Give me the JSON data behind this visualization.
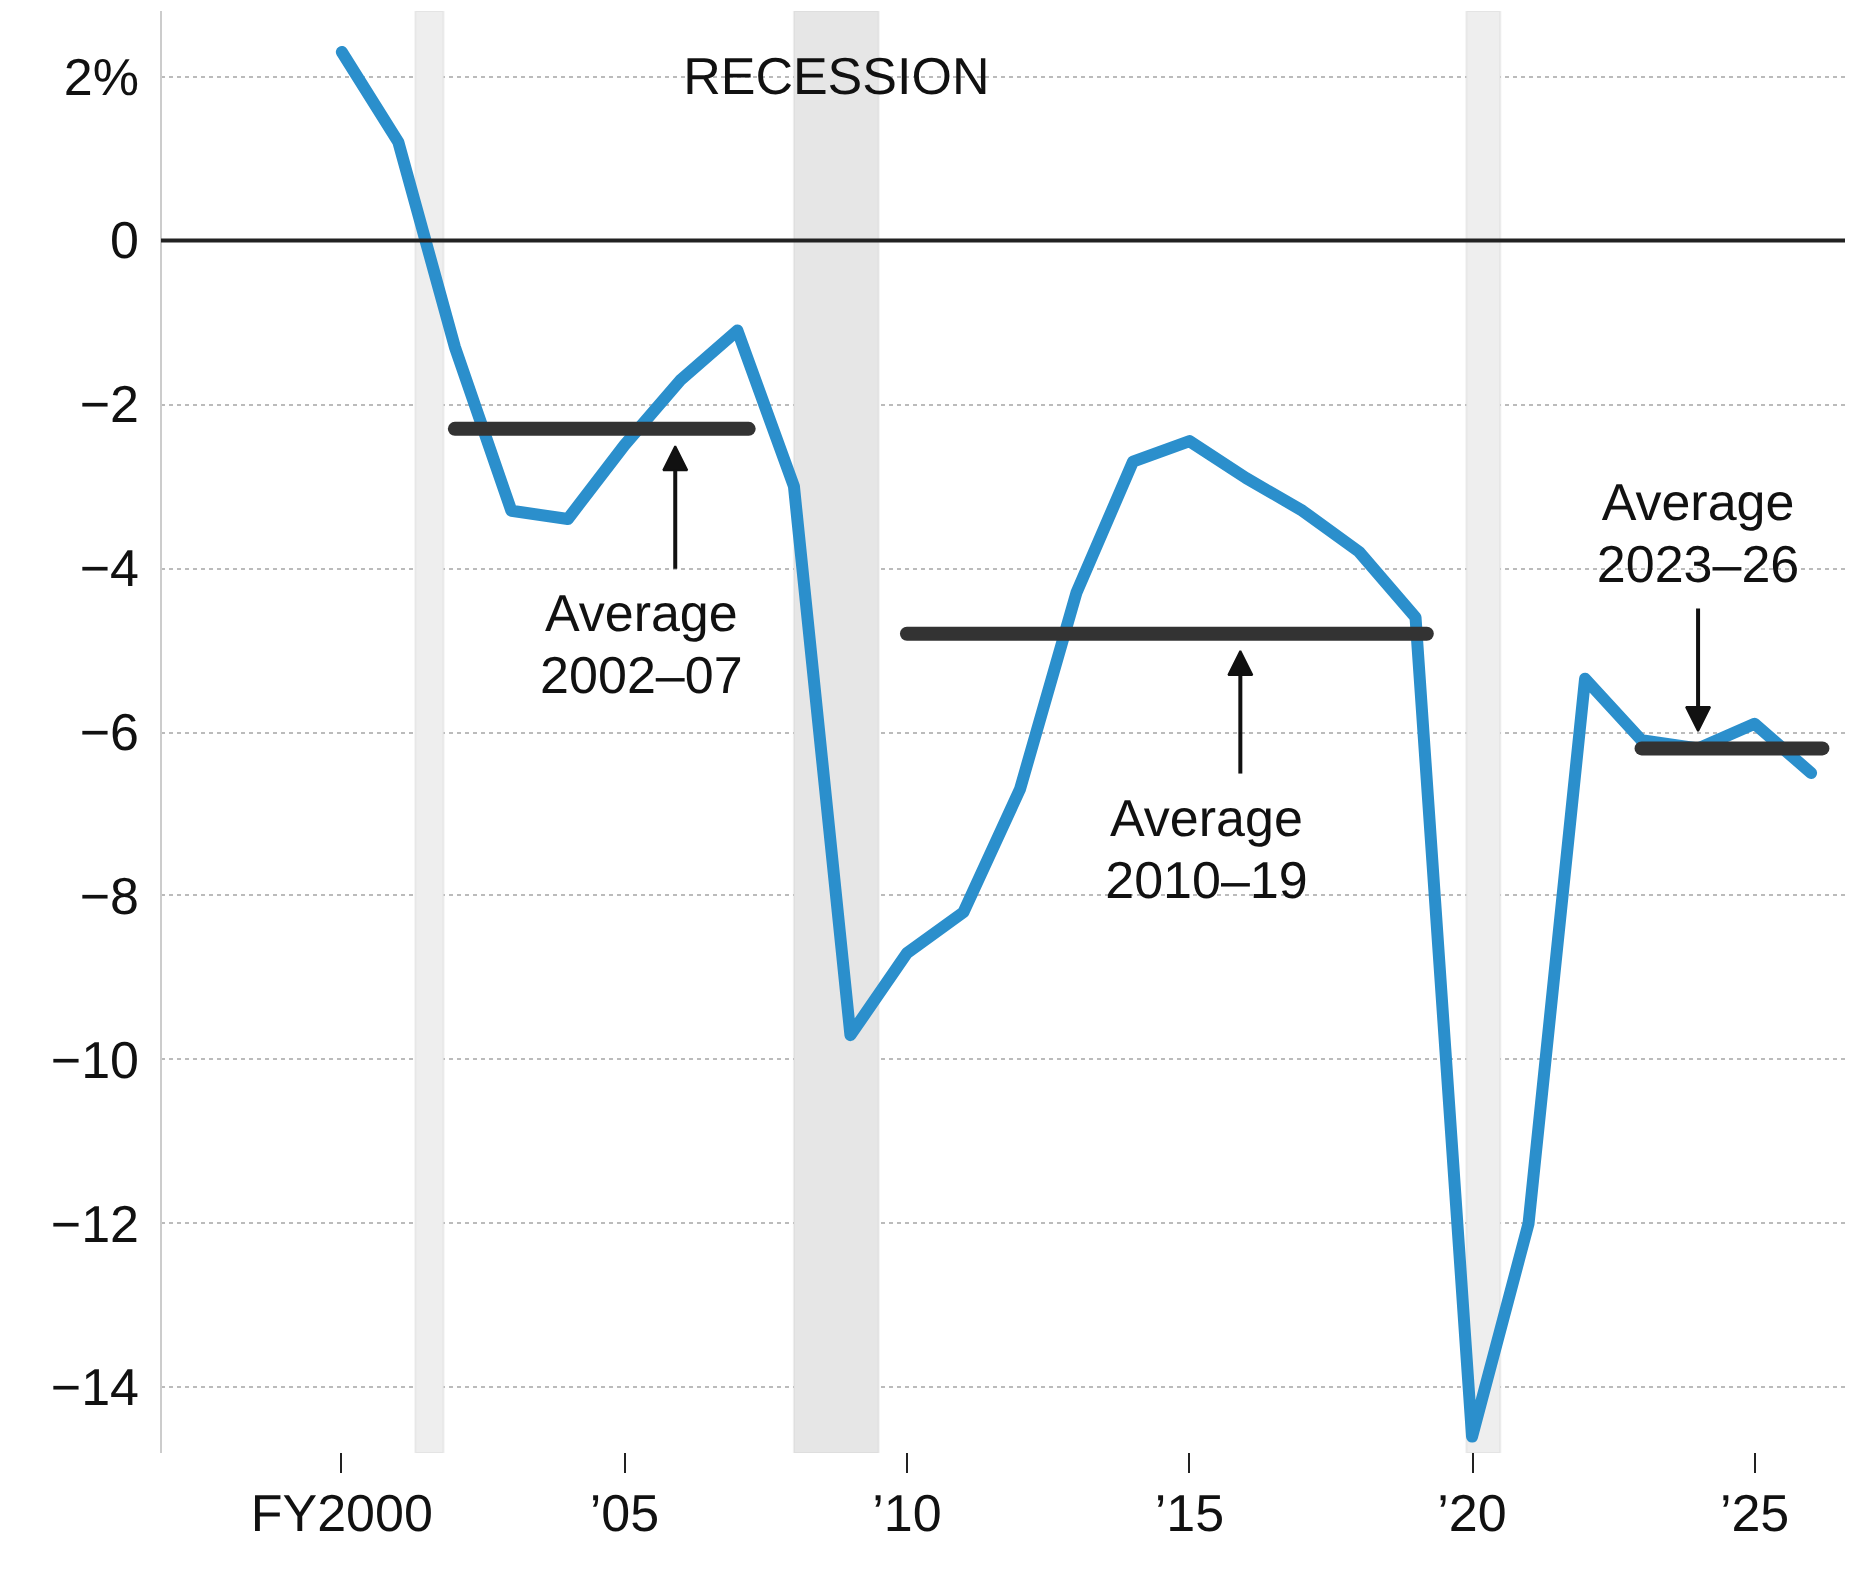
{
  "chart_data": {
    "type": "line",
    "x": [
      2000,
      2001,
      2002,
      2003,
      2004,
      2005,
      2006,
      2007,
      2008,
      2009,
      2010,
      2011,
      2012,
      2013,
      2014,
      2015,
      2016,
      2017,
      2018,
      2019,
      2020,
      2021,
      2022,
      2023,
      2024,
      2025,
      2026
    ],
    "series": [
      {
        "color": "#2b8fcc",
        "values": [
          2.3,
          1.2,
          -1.3,
          -3.3,
          -3.4,
          -2.5,
          -1.7,
          -1.1,
          -3.0,
          -9.7,
          -8.7,
          -8.2,
          -6.7,
          -4.3,
          -2.7,
          -2.45,
          -2.9,
          -3.3,
          -3.8,
          -4.6,
          -14.6,
          -12.0,
          -5.35,
          -6.1,
          -6.2,
          -5.9,
          -6.5
        ]
      },
      {
        "type": "line",
        "color": "#333333",
        "x": [
          2002,
          2007.2
        ],
        "values": [
          -2.3,
          -2.3
        ]
      },
      {
        "type": "line",
        "color": "#333333",
        "x": [
          2010,
          2019.2
        ],
        "values": [
          -4.8,
          -4.8
        ]
      },
      {
        "type": "line",
        "color": "#333333",
        "x": [
          2023,
          2026.2
        ],
        "values": [
          -6.2,
          -6.2
        ]
      }
    ],
    "xlim": [
      1996.8,
      2026.6
    ],
    "ylim": [
      -14.8,
      2.8
    ],
    "xticks": [
      {
        "value": 2000,
        "label": "FY2000"
      },
      {
        "value": 2005,
        "label": "’05"
      },
      {
        "value": 2010,
        "label": "’10"
      },
      {
        "value": 2015,
        "label": "’15"
      },
      {
        "value": 2020,
        "label": "’20"
      },
      {
        "value": 2025,
        "label": "’25"
      }
    ],
    "yticks": [
      {
        "value": 2,
        "label": "2%"
      },
      {
        "value": 0,
        "label": "0"
      },
      {
        "value": -2,
        "label": "−2"
      },
      {
        "value": -4,
        "label": "−4"
      },
      {
        "value": -6,
        "label": "−6"
      },
      {
        "value": -8,
        "label": "−8"
      },
      {
        "value": -10,
        "label": "−10"
      },
      {
        "value": -12,
        "label": "−12"
      },
      {
        "value": -14,
        "label": "−14"
      }
    ],
    "grid": "y",
    "ref_lines": [
      {
        "axis": "y",
        "value": 0,
        "color": "#222222"
      }
    ],
    "bands": [
      {
        "axis": "x",
        "from": 2001.3,
        "to": 2001.8,
        "color": "#eeeeee"
      },
      {
        "axis": "x",
        "from": 2008.0,
        "to": 2009.5,
        "color": "#e6e6e6",
        "label": "RECESSION"
      },
      {
        "axis": "x",
        "from": 2019.9,
        "to": 2020.5,
        "color": "#eeeeee"
      }
    ],
    "annotations": [
      {
        "text": "Average\n2002–07",
        "x": 2005.9,
        "y": -2.3
      },
      {
        "text": "Average\n2010–19",
        "x": 2015.9,
        "y": -4.8
      },
      {
        "text": "Average\n2023–26",
        "x": 2024.0,
        "y": -6.2
      }
    ]
  }
}
